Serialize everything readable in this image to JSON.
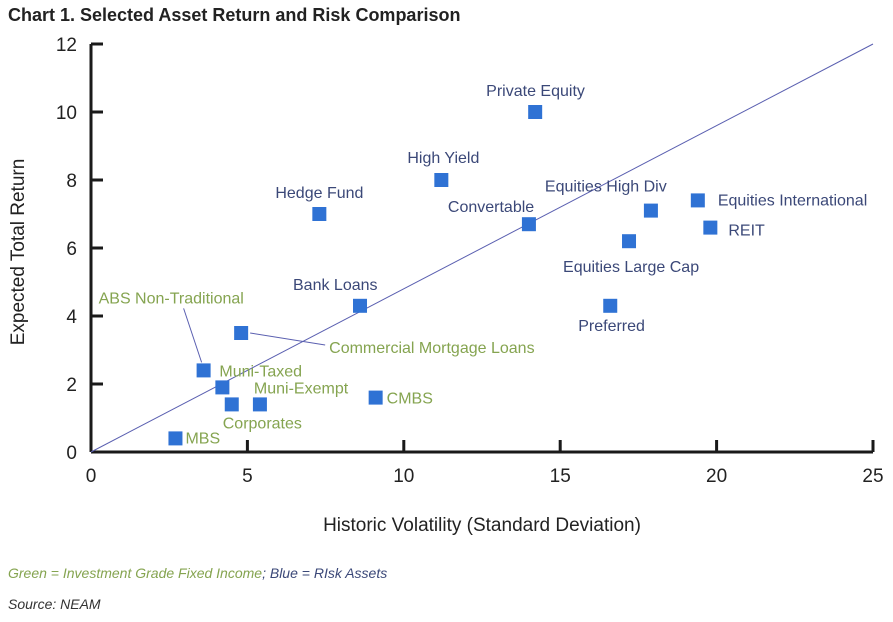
{
  "title": "Chart 1. Selected Asset Return and Risk Comparison",
  "note": {
    "green": "Green = Investment Grade Fixed Income",
    "sep": ";",
    "blue": " Blue = RIsk Assets"
  },
  "source": "Source: NEAM",
  "colors": {
    "marker": "#2f72d4",
    "risk_label": "#3b4878",
    "ig_label": "#85a450",
    "axis": "#1a1a1a",
    "line": "#5a5fb0"
  },
  "chart_data": {
    "type": "scatter",
    "xlabel": "Historic Volatility (Standard Deviation)",
    "ylabel": "Expected Total Return",
    "xlim": [
      0,
      25
    ],
    "ylim": [
      0,
      12
    ],
    "xticks": [
      0,
      5,
      10,
      15,
      20,
      25
    ],
    "yticks": [
      0,
      2,
      4,
      6,
      8,
      10,
      12
    ],
    "grid": false,
    "reference_line": {
      "from": [
        0,
        0
      ],
      "to": [
        25,
        12
      ]
    },
    "points": [
      {
        "label": "MBS",
        "x": 2.7,
        "y": 0.4,
        "group": "ig"
      },
      {
        "label": "ABS Non-Traditional",
        "x": 3.6,
        "y": 2.4,
        "group": "ig"
      },
      {
        "label": "Muni-Taxed",
        "x": 4.2,
        "y": 1.9,
        "group": "ig"
      },
      {
        "label": "Corporates",
        "x": 4.5,
        "y": 1.4,
        "group": "ig"
      },
      {
        "label": "Muni-Exempt",
        "x": 5.4,
        "y": 1.4,
        "group": "ig"
      },
      {
        "label": "Commercial Mortgage Loans",
        "x": 4.8,
        "y": 3.5,
        "group": "ig"
      },
      {
        "label": "CMBS",
        "x": 9.1,
        "y": 1.6,
        "group": "ig"
      },
      {
        "label": "Bank Loans",
        "x": 8.6,
        "y": 4.3,
        "group": "risk"
      },
      {
        "label": "Hedge Fund",
        "x": 7.3,
        "y": 7.0,
        "group": "risk"
      },
      {
        "label": "High Yield",
        "x": 11.2,
        "y": 8.0,
        "group": "risk"
      },
      {
        "label": "Private Equity",
        "x": 14.2,
        "y": 10.0,
        "group": "risk"
      },
      {
        "label": "Convertable",
        "x": 14.0,
        "y": 6.7,
        "group": "risk"
      },
      {
        "label": "Equities High Div",
        "x": 17.9,
        "y": 7.1,
        "group": "risk"
      },
      {
        "label": "Equities Large Cap",
        "x": 17.2,
        "y": 6.2,
        "group": "risk"
      },
      {
        "label": "Preferred",
        "x": 16.6,
        "y": 4.3,
        "group": "risk"
      },
      {
        "label": "Equities International",
        "x": 19.4,
        "y": 7.4,
        "group": "risk"
      },
      {
        "label": "REIT",
        "x": 19.8,
        "y": 6.6,
        "group": "risk"
      }
    ]
  }
}
